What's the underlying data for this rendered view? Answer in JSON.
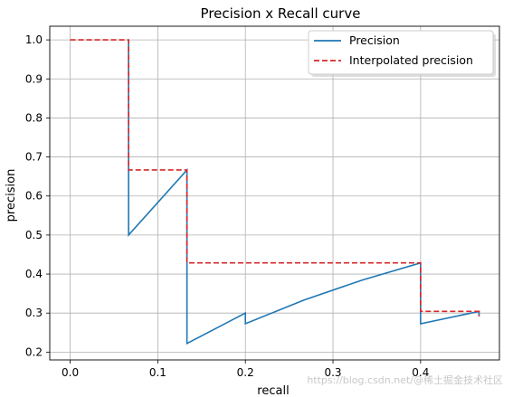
{
  "chart_data": {
    "type": "line",
    "title": "Precision x Recall curve",
    "xlabel": "recall",
    "ylabel": "precision",
    "xlim": [
      -0.0233,
      0.49
    ],
    "ylim": [
      0.18,
      1.035
    ],
    "xticks": [
      0.0,
      0.1,
      0.2,
      0.3,
      0.4
    ],
    "xtick_labels": [
      "0.0",
      "0.1",
      "0.2",
      "0.3",
      "0.4"
    ],
    "yticks": [
      0.2,
      0.3,
      0.4,
      0.5,
      0.6,
      0.7,
      0.8,
      0.9,
      1.0
    ],
    "ytick_labels": [
      "0.2",
      "0.3",
      "0.4",
      "0.5",
      "0.6",
      "0.7",
      "0.8",
      "0.9",
      "1.0"
    ],
    "grid": true,
    "legend_position": "top-right",
    "series": [
      {
        "name": "Precision",
        "color": "#1f77b4",
        "style": "solid",
        "x": [
          0.0667,
          0.0667,
          0.1333,
          0.1333,
          0.2,
          0.2,
          0.2667,
          0.3333,
          0.4,
          0.4,
          0.4667,
          0.4667
        ],
        "y": [
          1.0,
          0.5,
          0.6667,
          0.2222,
          0.3,
          0.2727,
          0.3333,
          0.3846,
          0.4286,
          0.2727,
          0.3043,
          0.2917
        ]
      },
      {
        "name": "Interpolated precision",
        "color": "#d62728",
        "style": "dashed",
        "x": [
          0.0,
          0.0667,
          0.0667,
          0.1333,
          0.1333,
          0.4,
          0.4,
          0.4667,
          0.4667
        ],
        "y": [
          1.0,
          1.0,
          0.6667,
          0.6667,
          0.4286,
          0.4286,
          0.3043,
          0.3043,
          0.2917
        ]
      }
    ]
  },
  "watermark": "https://blog.csdn.net/@稀土掘金技术社区"
}
